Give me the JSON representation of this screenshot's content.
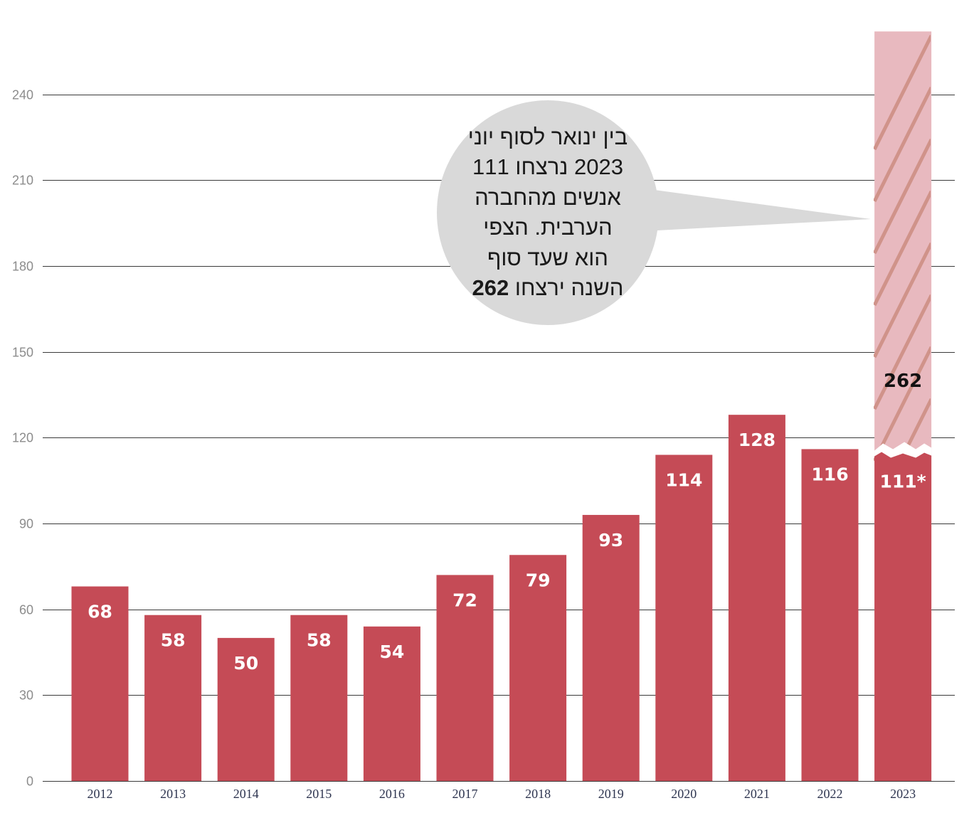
{
  "chart_data": {
    "type": "bar",
    "categories": [
      "2012",
      "2013",
      "2014",
      "2015",
      "2016",
      "2017",
      "2018",
      "2019",
      "2020",
      "2021",
      "2022",
      "2023"
    ],
    "values": [
      68,
      58,
      50,
      58,
      54,
      72,
      79,
      93,
      114,
      128,
      116,
      111
    ],
    "value_labels": [
      "68",
      "58",
      "50",
      "58",
      "54",
      "72",
      "79",
      "93",
      "114",
      "128",
      "116",
      "111*"
    ],
    "projection": {
      "category": "2023",
      "value": 262,
      "label": "262"
    },
    "ylim": [
      0,
      262
    ],
    "yticks": [
      0,
      30,
      60,
      90,
      120,
      150,
      180,
      210,
      240
    ],
    "grid": true,
    "colors": {
      "bar": "#c54b56",
      "projection": "#e8b9bf",
      "hatch": "#d0938a",
      "callout": "#d9d9d9"
    },
    "annotation": {
      "text": "בין ינואר לסוף יוני 2023 נרצחו 111 אנשים מהחברה הערבית. הצפי הוא שעד סוף השנה ירצחו",
      "emphasis": "262"
    }
  }
}
